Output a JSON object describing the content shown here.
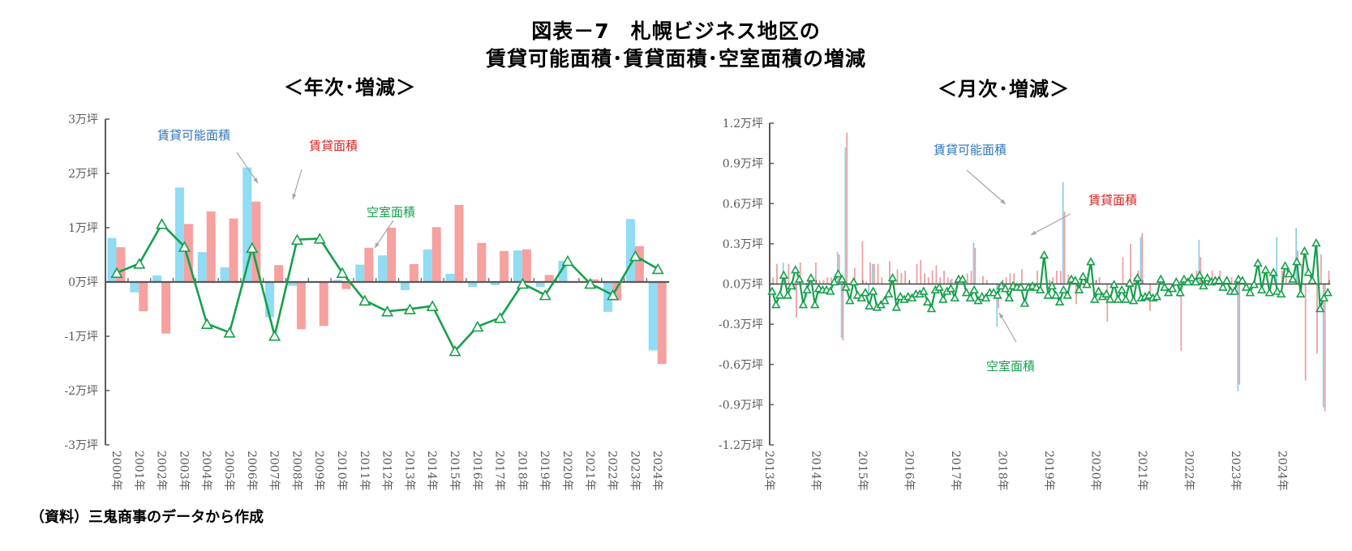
{
  "title": {
    "line1": "図表－7　札幌ビジネス地区の",
    "line2": "賃貸可能面積･賃貸面積･空室面積の増減"
  },
  "source": "（資料）三鬼商事のデータから作成",
  "colors": {
    "available": "#8fdcf3",
    "leased": "#f7a0a0",
    "vacant": "#14a04a",
    "axis": "#595959",
    "annot_available": "#2e75b6",
    "annot_leased": "#e02020",
    "annot_vacant": "#14a04a",
    "arrow": "#a6a6a6"
  },
  "chart_data": [
    {
      "type": "bar",
      "subtitle": "＜年次･増減＞",
      "title": "＜年次･増減＞",
      "xlabel": "",
      "ylabel": "",
      "unit": "万坪",
      "ylim": [
        -3,
        3
      ],
      "yticks": [
        3,
        2,
        1,
        0,
        -1,
        -2,
        -3
      ],
      "ytick_labels": [
        "3万坪",
        "2万坪",
        "1万坪",
        "0万坪",
        "-1万坪",
        "-2万坪",
        "-3万坪"
      ],
      "grid": false,
      "legend": "annotations",
      "categories": [
        "2000年",
        "2001年",
        "2002年",
        "2003年",
        "2004年",
        "2005年",
        "2006年",
        "2007年",
        "2008年",
        "2009年",
        "2010年",
        "2011年",
        "2012年",
        "2013年",
        "2014年",
        "2015年",
        "2016年",
        "2017年",
        "2018年",
        "2019年",
        "2020年",
        "2021年",
        "2022年",
        "2023年",
        "2024年"
      ],
      "series": [
        {
          "name": "賃貸可能面積",
          "kind": "bar",
          "values": [
            0.81,
            -0.19,
            0.12,
            1.74,
            0.55,
            0.27,
            2.11,
            -0.65,
            -0.07,
            0.0,
            0.04,
            0.32,
            0.49,
            -0.15,
            0.6,
            0.15,
            -0.09,
            -0.06,
            0.58,
            -0.09,
            0.39,
            0.0,
            -0.55,
            1.16,
            -1.26
          ]
        },
        {
          "name": "賃貸面積",
          "kind": "bar",
          "values": [
            0.64,
            -0.54,
            -0.95,
            1.07,
            1.3,
            1.17,
            1.48,
            0.31,
            -0.87,
            -0.81,
            -0.13,
            0.63,
            1.0,
            0.33,
            1.01,
            1.42,
            0.72,
            0.57,
            0.6,
            0.13,
            0.0,
            0.05,
            -0.34,
            0.66,
            -1.51
          ]
        },
        {
          "name": "空室面積",
          "kind": "line",
          "marker": "triangle",
          "values": [
            0.17,
            0.34,
            1.07,
            0.65,
            -0.77,
            -0.93,
            0.63,
            -0.99,
            0.78,
            0.8,
            0.17,
            -0.34,
            -0.54,
            -0.5,
            -0.44,
            -1.27,
            -0.82,
            -0.66,
            -0.03,
            -0.24,
            0.39,
            -0.03,
            -0.24,
            0.48,
            0.24
          ]
        }
      ],
      "annotations": [
        {
          "text": "賃貸可能面積",
          "series": "賃貸可能面積"
        },
        {
          "text": "賃貸面積",
          "series": "賃貸面積"
        },
        {
          "text": "空室面積",
          "series": "空室面積"
        }
      ]
    },
    {
      "type": "bar",
      "subtitle": "＜月次･増減＞",
      "title": "＜月次･増減＞",
      "xlabel": "",
      "ylabel": "",
      "unit": "万坪",
      "ylim": [
        -1.2,
        1.2
      ],
      "yticks": [
        1.2,
        0.9,
        0.6,
        0.3,
        0.0,
        -0.3,
        -0.6,
        -0.9,
        -1.2
      ],
      "ytick_labels": [
        "1.2万坪",
        "0.9万坪",
        "0.6万坪",
        "0.3万坪",
        "0.0万坪",
        "-0.3万坪",
        "-0.6万坪",
        "-0.9万坪",
        "-1.2万坪"
      ],
      "grid": false,
      "legend": "annotations",
      "x_period": "monthly, 2013年1月 - 2024年12月 (approx.)",
      "categories": [
        "2013年",
        "2014年",
        "2015年",
        "2016年",
        "2017年",
        "2018年",
        "2019年",
        "2020年",
        "2021年",
        "2022年",
        "2023年",
        "2024年"
      ],
      "series": [
        {
          "name": "賃貸可能面積",
          "kind": "bar",
          "values": [
            0.0,
            0.0,
            0.0,
            0.16,
            0.0,
            0.0,
            -0.05,
            0.0,
            0.0,
            -0.1,
            0.0,
            0.0,
            0.0,
            0.0,
            0.0,
            0.0,
            0.0,
            0.24,
            -0.4,
            1.02,
            0.0,
            0.0,
            0.0,
            0.0,
            0.0,
            -0.08,
            0.15,
            0.0,
            0.0,
            0.0,
            0.0,
            0.0,
            0.0,
            0.0,
            0.0,
            0.0,
            0.0,
            0.0,
            0.0,
            0.0,
            0.0,
            0.0,
            0.0,
            0.0,
            0.0,
            0.0,
            0.03,
            0.0,
            0.0,
            0.0,
            0.0,
            0.0,
            0.31,
            0.0,
            0.0,
            0.0,
            0.0,
            0.0,
            -0.32,
            0.0,
            0.0,
            0.0,
            0.0,
            0.0,
            0.0,
            0.0,
            0.0,
            0.0,
            0.0,
            0.0,
            0.0,
            0.0,
            0.0,
            0.0,
            0.0,
            0.76,
            0.0,
            0.0,
            0.0,
            -0.05,
            0.0,
            0.0,
            0.0,
            0.0,
            0.0,
            0.0,
            0.0,
            0.0,
            0.0,
            0.0,
            0.0,
            0.0,
            0.0,
            0.0,
            0.0,
            0.35,
            0.0,
            0.0,
            0.0,
            0.0,
            0.0,
            0.0,
            0.0,
            0.0,
            0.0,
            -0.1,
            0.0,
            0.0,
            0.0,
            0.0,
            0.33,
            0.0,
            0.0,
            0.0,
            0.0,
            0.0,
            0.0,
            0.0,
            0.0,
            0.0,
            -0.8,
            0.0,
            0.0,
            0.0,
            0.0,
            0.0,
            0.0,
            0.0,
            0.0,
            0.0,
            0.35,
            0.0,
            0.0,
            0.0,
            0.0,
            0.42,
            0.0,
            0.0,
            0.0,
            0.0,
            0.0,
            0.0,
            -0.92,
            0.0
          ]
        },
        {
          "name": "賃貸面積",
          "kind": "bar",
          "values": [
            0.05,
            0.15,
            0.0,
            0.08,
            0.15,
            0.0,
            -0.25,
            0.16,
            0.0,
            0.03,
            0.0,
            0.16,
            0.03,
            0.03,
            0.05,
            0.05,
            0.0,
            0.22,
            -0.42,
            1.13,
            0.0,
            0.12,
            0.0,
            0.32,
            0.02,
            0.16,
            0.15,
            0.15,
            0.05,
            0.0,
            0.17,
            0.0,
            0.11,
            0.08,
            0.1,
            0.02,
            0.0,
            0.15,
            0.18,
            0.08,
            0.05,
            0.1,
            0.14,
            0.05,
            0.1,
            0.05,
            0.04,
            0.03,
            0.0,
            0.05,
            0.08,
            0.1,
            0.27,
            0.0,
            0.06,
            0.03,
            0.0,
            0.0,
            -0.18,
            0.0,
            0.05,
            0.08,
            0.08,
            0.0,
            0.11,
            0.0,
            0.0,
            0.0,
            0.1,
            0.0,
            0.0,
            0.0,
            0.05,
            0.1,
            0.1,
            0.54,
            0.07,
            0.0,
            -0.15,
            0.0,
            0.0,
            0.08,
            0.0,
            0.0,
            0.05,
            0.0,
            -0.28,
            0.0,
            0.0,
            0.0,
            0.2,
            0.0,
            0.3,
            0.05,
            0.1,
            0.38,
            0.0,
            -0.2,
            0.0,
            0.0,
            0.0,
            0.0,
            0.0,
            0.0,
            0.0,
            -0.5,
            0.0,
            0.0,
            0.05,
            0.1,
            0.2,
            0.0,
            0.05,
            0.1,
            0.05,
            0.1,
            0.0,
            0.0,
            0.05,
            0.0,
            -0.75,
            0.0,
            0.0,
            0.0,
            0.0,
            0.0,
            0.0,
            0.0,
            0.0,
            0.0,
            0.0,
            0.1,
            0.05,
            0.0,
            0.0,
            0.25,
            0.15,
            -0.72,
            0.0,
            0.0,
            -0.52,
            0.22,
            -0.95,
            0.1
          ]
        },
        {
          "name": "空室面積",
          "kind": "line",
          "marker": "triangle",
          "values": [
            -0.05,
            -0.15,
            -0.08,
            0.07,
            -0.08,
            -0.01,
            0.11,
            0.04,
            -0.15,
            -0.04,
            0.05,
            -0.15,
            -0.03,
            -0.04,
            -0.04,
            -0.05,
            0.02,
            0.08,
            0.04,
            -0.02,
            -0.12,
            0.02,
            -0.08,
            -0.1,
            -0.06,
            -0.16,
            -0.05,
            -0.17,
            -0.15,
            -0.12,
            -0.07,
            0.05,
            -0.17,
            -0.09,
            -0.11,
            -0.09,
            -0.1,
            -0.07,
            -0.07,
            -0.05,
            -0.13,
            -0.18,
            -0.04,
            -0.02,
            -0.11,
            -0.05,
            -0.03,
            -0.1,
            0.04,
            0.04,
            -0.06,
            -0.1,
            -0.04,
            -0.12,
            -0.09,
            -0.1,
            -0.06,
            -0.06,
            -0.08,
            -0.01,
            -0.03,
            -0.1,
            -0.01,
            -0.02,
            -0.02,
            -0.14,
            -0.02,
            -0.01,
            -0.02,
            -0.04,
            0.22,
            -0.08,
            -0.01,
            -0.08,
            -0.13,
            -0.04,
            -0.08,
            0.04,
            0.03,
            -0.04,
            0.06,
            0.0,
            0.17,
            -0.11,
            -0.05,
            -0.09,
            -0.07,
            -0.11,
            0.0,
            -0.11,
            -0.04,
            -0.11,
            0.01,
            -0.12,
            0.05,
            -0.1,
            -0.09,
            -0.08,
            -0.1,
            -0.09,
            0.04,
            -0.02,
            -0.06,
            -0.03,
            0.02,
            -0.06,
            0.04,
            0.02,
            0.05,
            0.02,
            0.07,
            -0.01,
            0.05,
            0.02,
            0.03,
            0.03,
            -0.02,
            0.03,
            -0.05,
            -0.05,
            0.04,
            0.03,
            -0.02,
            -0.06,
            0.0,
            0.16,
            -0.04,
            0.11,
            -0.06,
            0.09,
            -0.05,
            -0.07,
            0.14,
            0.08,
            0.04,
            0.17,
            -0.07,
            0.25,
            0.09,
            0.03,
            0.31,
            -0.18,
            -0.1,
            -0.06
          ]
        }
      ],
      "annotations": [
        {
          "text": "賃貸可能面積",
          "series": "賃貸可能面積"
        },
        {
          "text": "賃貸面積",
          "series": "賃貸面積"
        },
        {
          "text": "空室面積",
          "series": "空室面積"
        }
      ]
    }
  ]
}
